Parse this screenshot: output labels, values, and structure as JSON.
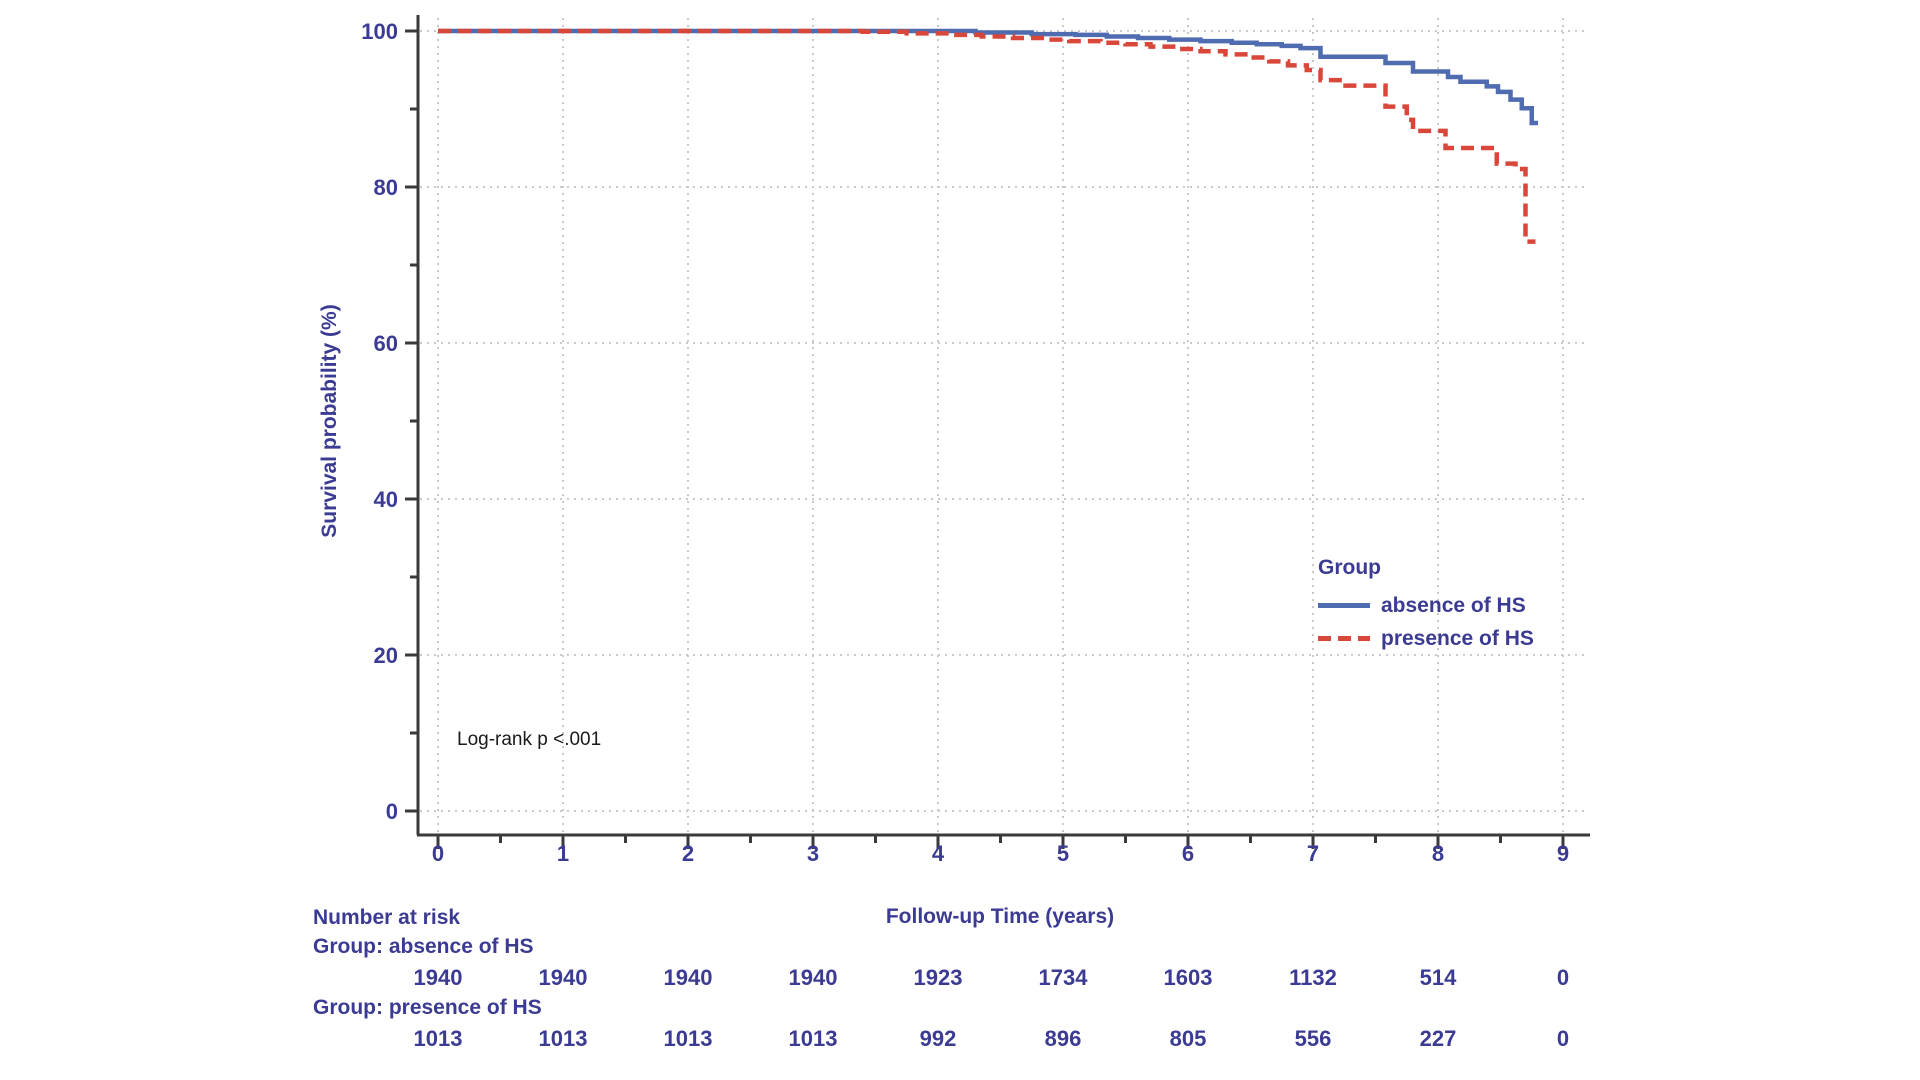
{
  "chart_data": {
    "type": "line",
    "subtype": "kaplan-meier-step-curve",
    "title": "",
    "xlabel": "Follow-up Time (years)",
    "ylabel": "Survival probability (%)",
    "xlim": [
      0,
      9
    ],
    "ylim": [
      0,
      100
    ],
    "x_ticks": [
      0,
      1,
      2,
      3,
      4,
      5,
      6,
      7,
      8,
      9
    ],
    "x_minor_ticks": [
      0.5,
      1.5,
      2.5,
      3.5,
      4.5,
      5.5,
      6.5,
      7.5,
      8.5
    ],
    "y_ticks": [
      0,
      20,
      40,
      60,
      80,
      100
    ],
    "y_minor_ticks": [
      10,
      30,
      50,
      70,
      90
    ],
    "grid": "dotted gridlines at every major tick, both axes",
    "annotation": "Log-rank p <.001",
    "legend": {
      "title": "Group",
      "position": "inside right, lower third of plot",
      "entries": [
        {
          "label": "absence of HS",
          "color": "#4f6cb0",
          "line_style": "solid"
        },
        {
          "label": "presence of HS",
          "color": "#d9473b",
          "line_style": "dashed"
        }
      ]
    },
    "series": [
      {
        "name": "absence of HS",
        "color": "#4f6cb0",
        "line_style": "solid",
        "points": [
          [
            0,
            100
          ],
          [
            4.3,
            99.8
          ],
          [
            4.75,
            99.6
          ],
          [
            5.1,
            99.5
          ],
          [
            5.35,
            99.3
          ],
          [
            5.6,
            99.1
          ],
          [
            5.85,
            98.9
          ],
          [
            6.1,
            98.7
          ],
          [
            6.35,
            98.5
          ],
          [
            6.55,
            98.3
          ],
          [
            6.75,
            98.1
          ],
          [
            6.9,
            97.8
          ],
          [
            7.06,
            96.7
          ],
          [
            7.58,
            95.9
          ],
          [
            7.8,
            94.8
          ],
          [
            8.08,
            94.1
          ],
          [
            8.18,
            93.5
          ],
          [
            8.39,
            92.9
          ],
          [
            8.48,
            92.2
          ],
          [
            8.58,
            91.2
          ],
          [
            8.67,
            90.1
          ],
          [
            8.75,
            88.2
          ],
          [
            8.8,
            88.2
          ]
        ]
      },
      {
        "name": "presence of HS",
        "color": "#d9473b",
        "line_style": "dashed",
        "points": [
          [
            0,
            100
          ],
          [
            3.4,
            99.9
          ],
          [
            3.75,
            99.7
          ],
          [
            4.1,
            99.5
          ],
          [
            4.35,
            99.3
          ],
          [
            4.6,
            99.1
          ],
          [
            4.85,
            98.9
          ],
          [
            5.05,
            98.7
          ],
          [
            5.3,
            98.5
          ],
          [
            5.5,
            98.3
          ],
          [
            5.7,
            98.0
          ],
          [
            5.9,
            97.7
          ],
          [
            6.1,
            97.4
          ],
          [
            6.3,
            97.0
          ],
          [
            6.5,
            96.6
          ],
          [
            6.65,
            96.1
          ],
          [
            6.8,
            95.6
          ],
          [
            6.95,
            95.0
          ],
          [
            7.06,
            93.7
          ],
          [
            7.26,
            93.0
          ],
          [
            7.58,
            90.3
          ],
          [
            7.75,
            88.6
          ],
          [
            7.8,
            87.2
          ],
          [
            8.06,
            85.0
          ],
          [
            8.47,
            83.0
          ],
          [
            8.62,
            82.3
          ],
          [
            8.7,
            73.0
          ],
          [
            8.78,
            73.0
          ]
        ]
      }
    ],
    "number_at_risk": {
      "heading": "Number at risk",
      "times": [
        0,
        1,
        2,
        3,
        4,
        5,
        6,
        7,
        8,
        9
      ],
      "groups": [
        {
          "label": "Group: absence of HS",
          "counts": [
            1940,
            1940,
            1940,
            1940,
            1923,
            1734,
            1603,
            1132,
            514,
            0
          ]
        },
        {
          "label": "Group: presence of HS",
          "counts": [
            1013,
            1013,
            1013,
            1013,
            992,
            896,
            805,
            556,
            227,
            0
          ]
        }
      ]
    },
    "colors": {
      "text_navy": "#3b3b93",
      "axis": "#3a3a3a",
      "grid": "#c9c9c9",
      "annotation_text": "#1a1a1a",
      "background": "#ffffff"
    }
  }
}
